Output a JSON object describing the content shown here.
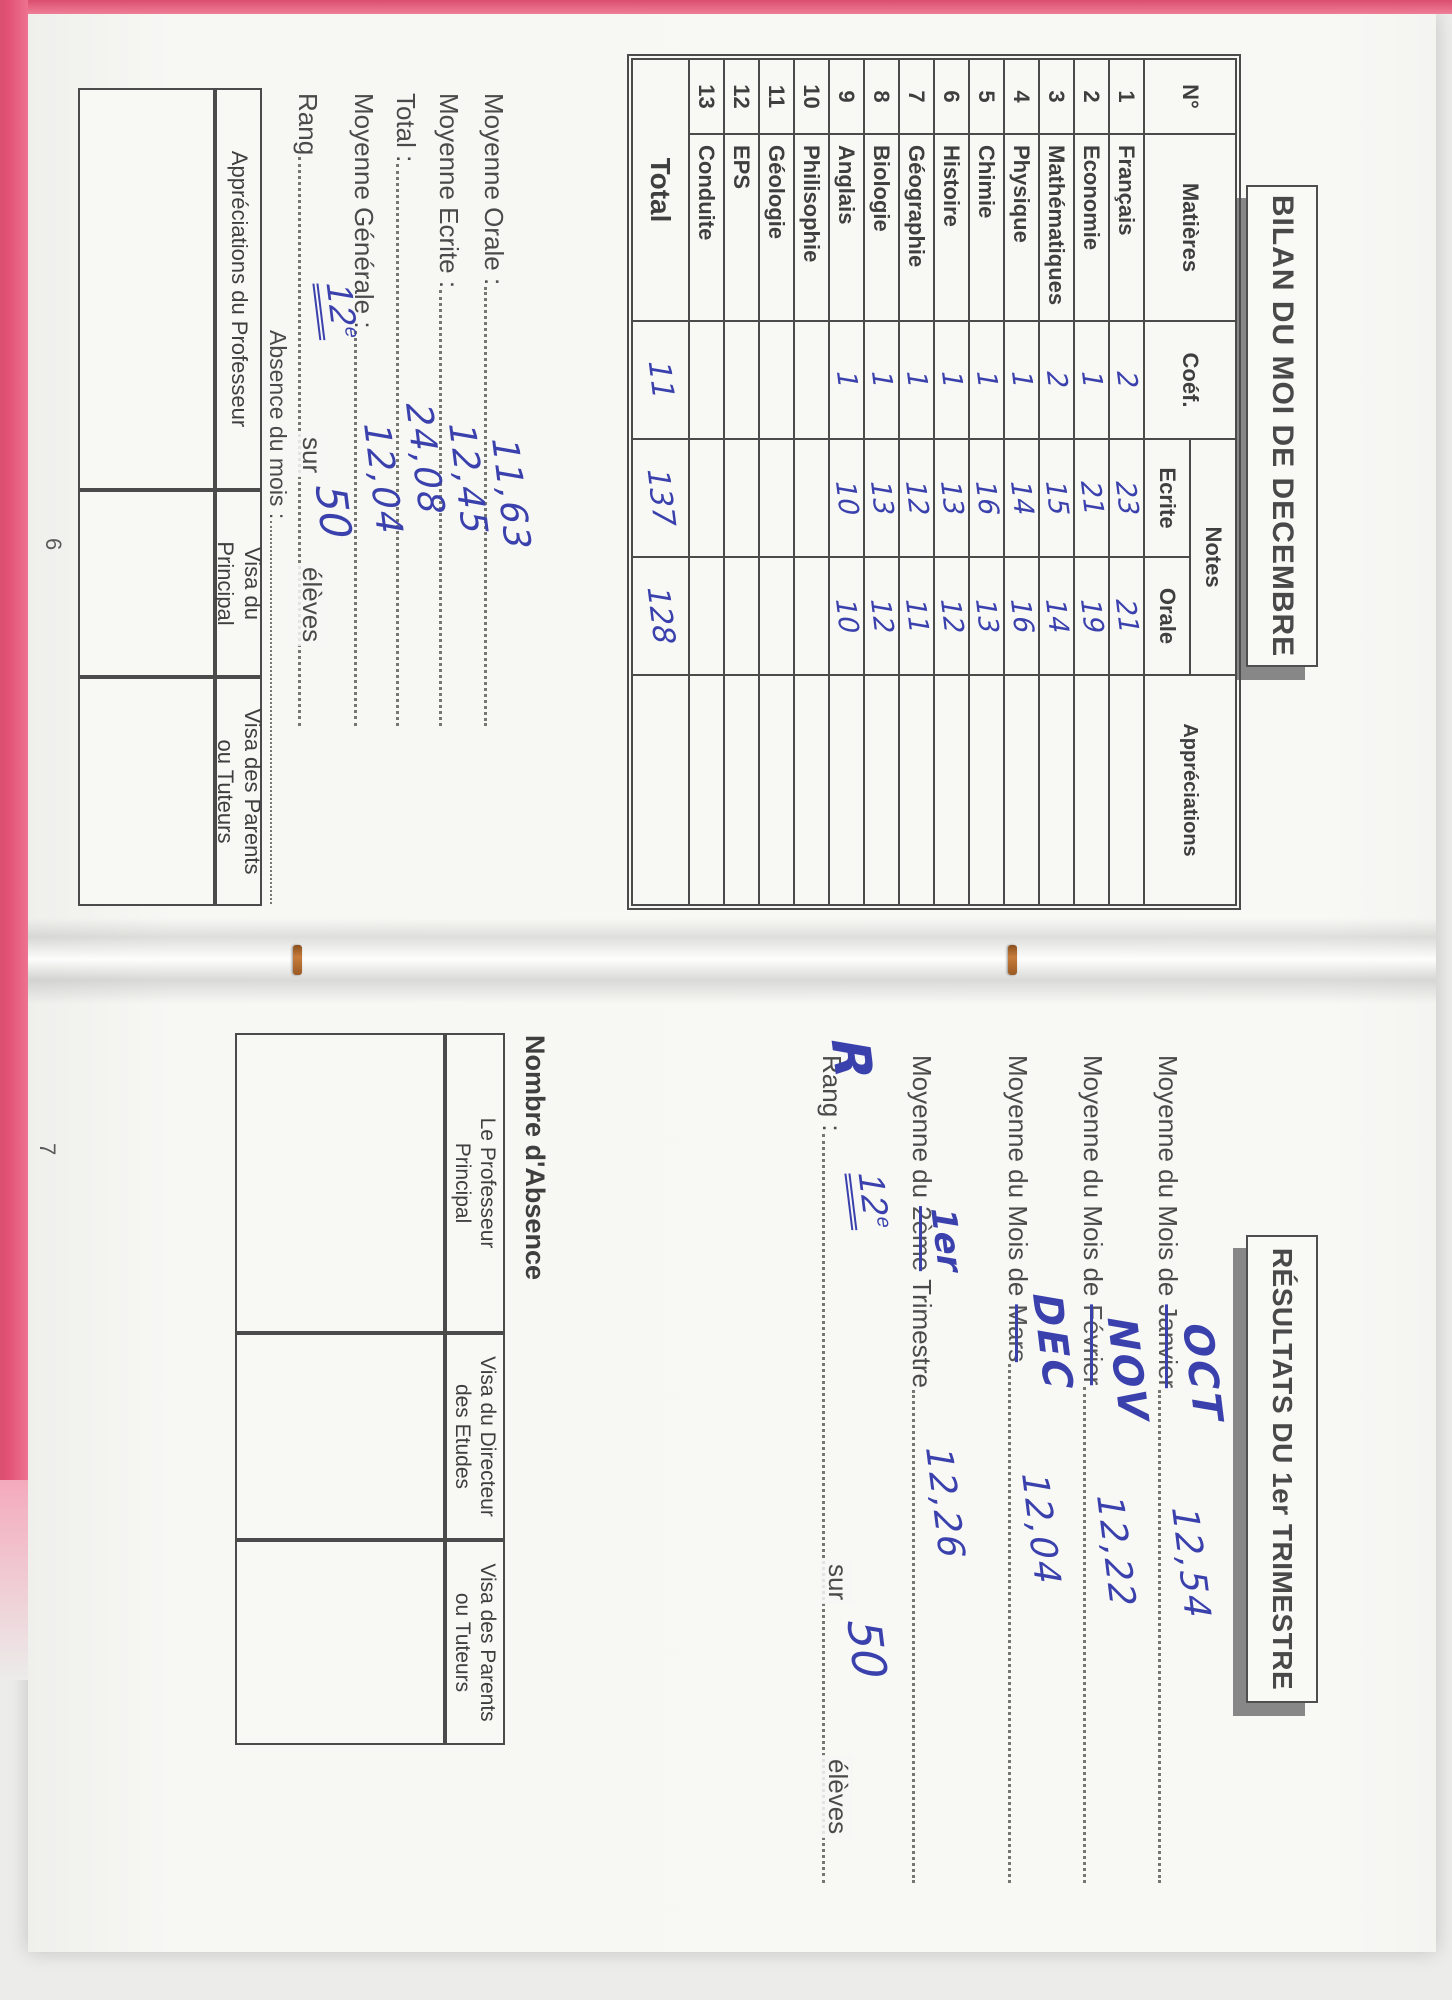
{
  "page6": {
    "page_number": "6",
    "title": "BILAN DU MOI DE DECEMBRE",
    "table": {
      "headers": {
        "num": "N°",
        "subject": "Matières",
        "coef": "Coéf.",
        "notes": "Notes",
        "written": "Ecrite",
        "oral": "Orale",
        "remarks": "Appréciations"
      },
      "rows": [
        {
          "num": "1",
          "subject": "Français",
          "coef": "2",
          "written": "23",
          "oral": "21",
          "remarks": ""
        },
        {
          "num": "2",
          "subject": "Economie",
          "coef": "1",
          "written": "21",
          "oral": "19",
          "remarks": ""
        },
        {
          "num": "3",
          "subject": "Mathématiques",
          "coef": "2",
          "written": "15",
          "oral": "14",
          "remarks": ""
        },
        {
          "num": "4",
          "subject": "Physique",
          "coef": "1",
          "written": "14",
          "oral": "16",
          "remarks": ""
        },
        {
          "num": "5",
          "subject": "Chimie",
          "coef": "1",
          "written": "16",
          "oral": "13",
          "remarks": ""
        },
        {
          "num": "6",
          "subject": "Histoire",
          "coef": "1",
          "written": "13",
          "oral": "12",
          "remarks": ""
        },
        {
          "num": "7",
          "subject": "Géographie",
          "coef": "1",
          "written": "12",
          "oral": "11",
          "remarks": ""
        },
        {
          "num": "8",
          "subject": "Biologie",
          "coef": "1",
          "written": "13",
          "oral": "12",
          "remarks": ""
        },
        {
          "num": "9",
          "subject": "Anglais",
          "coef": "1",
          "written": "10",
          "oral": "10",
          "remarks": ""
        },
        {
          "num": "10",
          "subject": "Philisophie",
          "coef": "",
          "written": "",
          "oral": "",
          "remarks": ""
        },
        {
          "num": "11",
          "subject": "Géologie",
          "coef": "",
          "written": "",
          "oral": "",
          "remarks": ""
        },
        {
          "num": "12",
          "subject": "EPS",
          "coef": "",
          "written": "",
          "oral": "",
          "remarks": ""
        },
        {
          "num": "13",
          "subject": "Conduite",
          "coef": "",
          "written": "",
          "oral": "",
          "remarks": ""
        }
      ],
      "total_label": "Total",
      "total": {
        "coef": "11",
        "written": "137",
        "oral": "128"
      }
    },
    "summary_lines": [
      {
        "label": "Moyenne Orale :",
        "value": "11,63"
      },
      {
        "label": "Moyenne Ecrite :",
        "value": "12,45"
      },
      {
        "label": "Total :",
        "value": "24,08"
      },
      {
        "label": "Moyenne Générale :",
        "value": "12,04"
      }
    ],
    "rank_line": {
      "label": "Rang",
      "rank": "12",
      "rank_sup": "e",
      "sur": "sur",
      "count": "50",
      "eleves": "élèves"
    },
    "absence_line": "Absence du mois :",
    "visa_table": {
      "col1": "Appréciations du Professeur",
      "col2": "Visa du\nPrincipal",
      "col3": "Visa des Parents\nou Tuteurs"
    }
  },
  "page7": {
    "page_number": "7",
    "title": "RÉSULTATS DU 1er TRIMESTRE",
    "month_lines": [
      {
        "label": "Moyenne du Mois de",
        "printed_month": "Janvier",
        "hand_month": "OCT",
        "value": "12,54"
      },
      {
        "label": "Moyenne du Mois de",
        "printed_month": "Février",
        "hand_month": "NOV",
        "value": "12,22"
      },
      {
        "label": "Moyenne du Mois de",
        "printed_month": "Mars",
        "hand_month": "DEC",
        "value": "12,04"
      }
    ],
    "trimester_line": {
      "prefix": "Moyenne du",
      "printed": "2ème",
      "hand": "1er",
      "suffix": "Trimestre",
      "value": "12,26"
    },
    "rank_line": {
      "label": "Rang :",
      "hand_r": "R",
      "rank": "12",
      "rank_sup": "e",
      "sur": "sur",
      "count": "50",
      "eleves": "élèves"
    },
    "absence_heading": "Nombre d'Absence",
    "absence_table": {
      "col1": "Le Professeur\nPrincipal",
      "col2": "Visa du Directeur\ndes Etudes",
      "col3": "Visa des Parents\nou Tuteurs"
    }
  },
  "colors": {
    "ink_blue": "#3a41ad",
    "print_gray": "#474747",
    "paper": "#f7f7f4",
    "pink_edge": "#e85f7f",
    "shadow_gray": "#878787",
    "staple_brown": "#b26a32"
  }
}
